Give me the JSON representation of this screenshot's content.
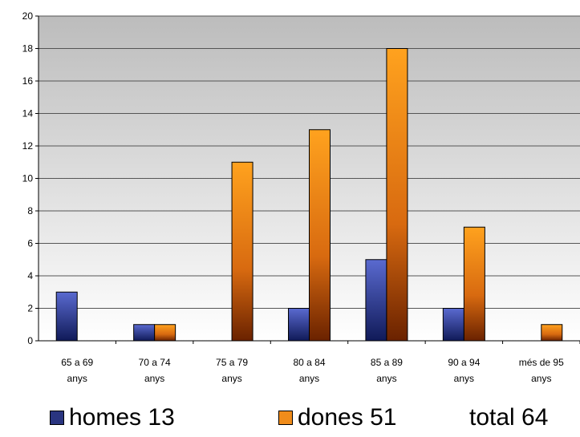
{
  "chart_data": {
    "type": "bar",
    "categories": [
      [
        "65 a 69",
        "anys"
      ],
      [
        "70 a 74",
        "anys"
      ],
      [
        "75 a 79",
        "anys"
      ],
      [
        "80 a 84",
        "anys"
      ],
      [
        "85 a 89",
        "anys"
      ],
      [
        "90 a 94",
        "anys"
      ],
      [
        "més de 95",
        "anys"
      ]
    ],
    "series": [
      {
        "name": "homes",
        "values": [
          3,
          1,
          0,
          2,
          5,
          2,
          0
        ],
        "color": "#2a3580"
      },
      {
        "name": "dones",
        "values": [
          0,
          1,
          11,
          13,
          18,
          7,
          1
        ],
        "color": "#f08c1a"
      }
    ],
    "yticks": [
      "0",
      "2",
      "4",
      "6",
      "8",
      "10",
      "12",
      "14",
      "16",
      "18",
      "20"
    ],
    "ylim": [
      0,
      20
    ],
    "grid": true
  },
  "legend": {
    "homes": "homes 13",
    "dones": "dones 51",
    "total": "total 64"
  },
  "colors": {
    "homes": "#2a3580",
    "dones": "#f08c1a"
  }
}
